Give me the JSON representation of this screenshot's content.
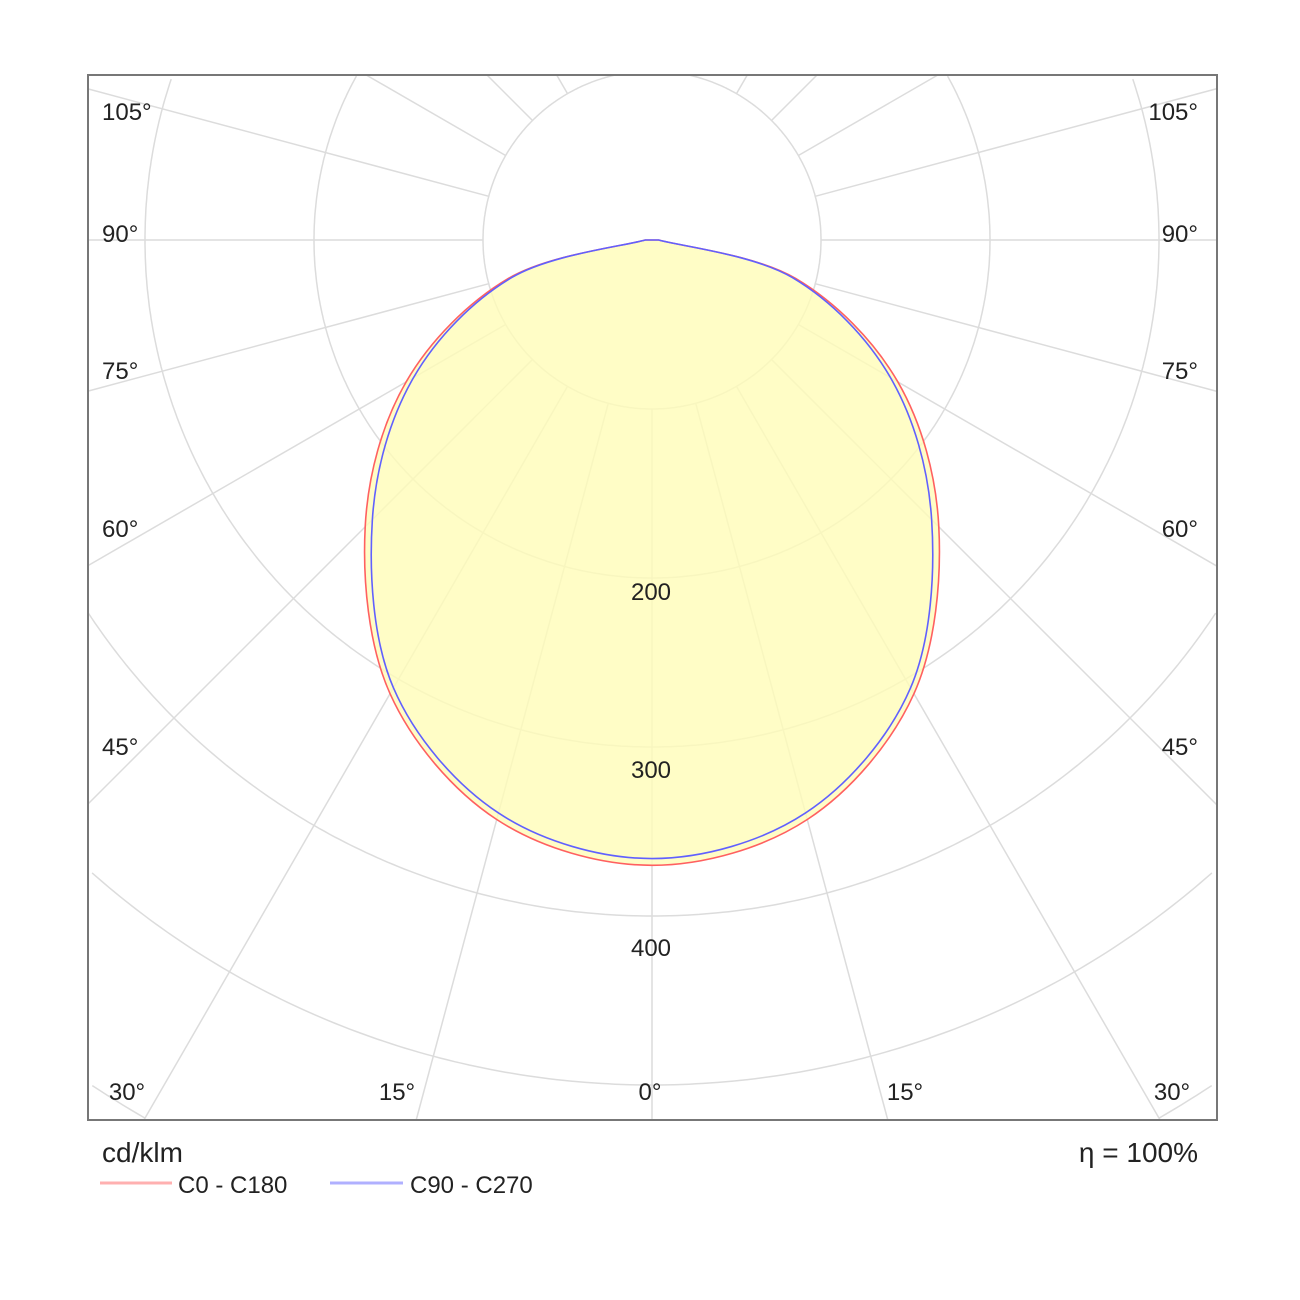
{
  "chart_data": {
    "type": "polar",
    "unit_label": "cd/klm",
    "efficiency_label": "η = 100%",
    "radial_ticks": [
      200,
      300,
      400
    ],
    "radial_grid": [
      100,
      200,
      300,
      400,
      500,
      600
    ],
    "angle_labels_left": [
      "105°",
      "90°",
      "75°",
      "60°",
      "45°"
    ],
    "angle_labels_bottom": [
      "30°",
      "15°",
      "0°",
      "15°",
      "30°"
    ],
    "angle_labels_right": [
      "105°",
      "90°",
      "75°",
      "60°",
      "45°"
    ],
    "angles_deg": [
      0,
      15,
      30,
      45,
      60,
      75,
      90
    ],
    "series": [
      {
        "name": "C0 - C180",
        "color": "#ff6060",
        "values": [
          370,
          355,
          310,
          240,
          168,
          88,
          4
        ]
      },
      {
        "name": "C90 - C270",
        "color": "#6060ff",
        "values": [
          366,
          351,
          306,
          234,
          163,
          86,
          4
        ]
      }
    ],
    "fill_color": "#fffcb8",
    "grid": true,
    "legend_placement": "bottom-left"
  }
}
